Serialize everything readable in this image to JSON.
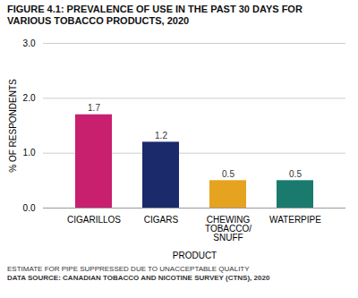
{
  "chart_data": {
    "type": "bar",
    "title": "FIGURE 4.1: PREVALENCE OF USE IN THE PAST 30 DAYS FOR\nVARIOUS TOBACCO PRODUCTS, 2020",
    "categories": [
      "CIGARILLOS",
      "CIGARS",
      "CHEWING\nTOBACCO/\nSNUFF",
      "WATERPIPE"
    ],
    "values": [
      1.7,
      1.2,
      0.5,
      0.5
    ],
    "colors": [
      "#C8206E",
      "#1B2A6B",
      "#E5A320",
      "#1A7A6E"
    ],
    "xlabel": "PRODUCT",
    "ylabel": "% OF RESPONDENTS",
    "ylim": [
      0,
      3
    ],
    "yticks": [
      0,
      1,
      2,
      3
    ],
    "grid": true,
    "data_labels": true,
    "footnotes": [
      "ESTIMATE FOR PIPE SUPPRESSED DUE TO UNACCEPTABLE QUALITY",
      "DATA SOURCE: CANADIAN TOBACCO AND NICOTINE SURVEY (CTNS), 2020"
    ]
  }
}
